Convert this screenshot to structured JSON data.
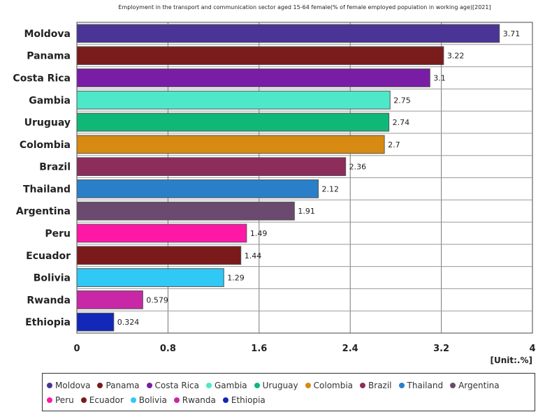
{
  "chart_data": {
    "type": "bar",
    "orientation": "horizontal",
    "title": "Employment in the transport and communication sector aged 15-64 female(% of female employed population in working age)[2021]",
    "unit_label": "[Unit:.%]",
    "xlim": [
      0,
      4
    ],
    "x_ticks": [
      "0",
      "0.8",
      "1.6",
      "2.4",
      "3.2",
      "4"
    ],
    "grid": true,
    "legend_position": "bottom",
    "categories": [
      "Moldova",
      "Panama",
      "Costa Rica",
      "Gambia",
      "Uruguay",
      "Colombia",
      "Brazil",
      "Thailand",
      "Argentina",
      "Peru",
      "Ecuador",
      "Bolivia",
      "Rwanda",
      "Ethiopia"
    ],
    "values": [
      3.71,
      3.22,
      3.1,
      2.75,
      2.74,
      2.7,
      2.36,
      2.12,
      1.91,
      1.49,
      1.44,
      1.29,
      0.579,
      0.324
    ],
    "value_labels": [
      "3.71",
      "3.22",
      "3.1",
      "2.75",
      "2.74",
      "2.7",
      "2.36",
      "2.12",
      "1.91",
      "1.49",
      "1.44",
      "1.29",
      "0.579",
      "0.324"
    ],
    "colors": [
      "#4a3596",
      "#7a1c1c",
      "#7a1da6",
      "#4de8c8",
      "#10b878",
      "#d68a12",
      "#8c2d5c",
      "#2a80c8",
      "#6a4a6e",
      "#ff18a6",
      "#7a1a1a",
      "#30c8f5",
      "#c828a6",
      "#1228b8"
    ]
  }
}
